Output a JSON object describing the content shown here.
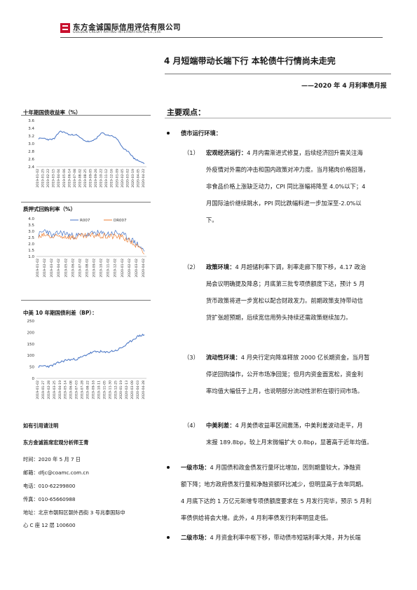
{
  "header": {
    "brand_cn": "东方金诚国际信用评估有限公司",
    "brand_en": "GOLDEN CREDIT RATING INTERNATIONAL Co.,Ltd."
  },
  "report": {
    "title": "4 月短端带动长端下行    本轮债牛行情尚未走完",
    "subtitle": "——2020 年 4 月利率债月报"
  },
  "charts": [
    {
      "title": "十年期国债收益率（%）",
      "chart_data": {
        "type": "line",
        "yticks": [
          "3.6",
          "3.4",
          "3.2",
          "3.0",
          "2.8",
          "2.6",
          "2.4"
        ],
        "ylim": [
          2.4,
          3.6
        ],
        "categories": [
          "2019-01-02",
          "2019-01-25",
          "2019-02-22",
          "2019-03-15",
          "2019-04-04",
          "2019-05-06",
          "2019-06-14",
          "2019-07-08",
          "2019-08-02",
          "2019-08-25",
          "2019-09-05",
          "2019-09-26",
          "2019-10-22",
          "2019-11-12",
          "2019-12-16",
          "2020-01-09",
          "2020-02-05",
          "2020-03-02",
          "2020-03-19",
          "2020-04-05",
          "2020-04-22"
        ],
        "series": [
          {
            "color": "#4472c4",
            "values": [
              3.13,
              3.14,
              3.1,
              3.13,
              3.32,
              3.29,
              3.22,
              3.24,
              3.14,
              3.06,
              3.05,
              3.15,
              3.28,
              3.22,
              3.2,
              3.1,
              2.86,
              2.8,
              2.62,
              2.55,
              2.48
            ]
          }
        ]
      }
    },
    {
      "title": "质押式回购利率（%）",
      "chart_data": {
        "type": "line",
        "yticks": [
          "4.0",
          "3.5",
          "3.0",
          "2.5",
          "2.0",
          "1.5",
          "1.0"
        ],
        "ylim": [
          1.0,
          4.0
        ],
        "categories": [
          "2019-01-02",
          "2019-02-02",
          "2019-03-02",
          "2019-04-02",
          "2019-05-02",
          "2019-06-02",
          "2019-07-02",
          "2019-08-02",
          "2019-09-02",
          "2019-10-02",
          "2019-11-02",
          "2019-12-02",
          "2020-01-02",
          "2020-02-02",
          "2020-03-02",
          "2020-04-02"
        ],
        "series": [
          {
            "name": "R007",
            "color": "#4472c4",
            "values": [
              2.7,
              3.1,
              2.6,
              2.9,
              2.8,
              2.6,
              2.7,
              2.7,
              2.9,
              2.8,
              2.8,
              2.9,
              2.7,
              2.4,
              2.0,
              1.4
            ]
          },
          {
            "name": "DR007",
            "color": "#ed7d31",
            "values": [
              2.5,
              2.7,
              2.5,
              2.6,
              2.6,
              2.5,
              2.6,
              2.6,
              2.7,
              2.6,
              2.6,
              2.6,
              2.5,
              2.2,
              1.8,
              1.2
            ]
          }
        ]
      }
    },
    {
      "title": "中美 10 年期国债利差（BP）：",
      "chart_data": {
        "type": "line",
        "yticks": [
          "250",
          "200",
          "150",
          "100",
          "50",
          "0"
        ],
        "ylim": [
          0,
          250
        ],
        "categories": [
          "2019-01-02",
          "2019-01-27",
          "2019-02-28",
          "2019-03-25",
          "2019-04-19",
          "2019-05-14",
          "2019-06-08",
          "2019-07-03",
          "2019-07-28",
          "2019-08-22",
          "2019-09-16",
          "2019-10-11",
          "2019-11-05",
          "2019-11-30",
          "2019-12-25",
          "2020-01-19",
          "2020-02-13",
          "2020-03-09",
          "2020-04-03",
          "2020-04-28"
        ],
        "series": [
          {
            "color": "#4472c4",
            "values": [
              50,
              55,
              52,
              62,
              72,
              80,
              82,
              85,
              95,
              108,
              115,
              117,
              112,
              118,
              122,
              135,
              150,
              170,
              185,
              190
            ]
          }
        ]
      }
    }
  ],
  "sidebar": {
    "cite_note": "如有引用请注明",
    "analyst": "东方金诚首席宏观分析师王青",
    "time": "时间：2020 年 5 月 7 日",
    "email": "邮箱：dfjc@coamc.com.cn",
    "phone": "电话：010-62299800",
    "fax": "传真：010-65660988",
    "address_1": "地址：北京市朝阳区朝外西街 3 号兆泰国际中",
    "address_2": "心 C 座 12 层   100600"
  },
  "main": {
    "heading": "主要观点：",
    "section1": "债市运行环境：",
    "items": [
      {
        "num": "（1）",
        "label": "宏观经济运行：",
        "lines": [
          "4 月内需渐进式修复，后续经济回升需关注海",
          "外疫情对外需的冲击和国内政策对冲力度。当月猪肉价格回落，",
          "非食品价格上涨缺乏动力，CPI 同比涨幅将降至 4.0%以下；4",
          "月国际油价继续跳水，PPI 同比跌幅料进一步加深至-2.0%以",
          "下。"
        ]
      },
      {
        "num": "（2）",
        "label": "政策环境：",
        "lines": [
          "4 月超储利率下调，利率走廊下限下移，4.17 政治",
          "局会议明确提及降息；月底第三批专项债额度下达，预计 5 月",
          "货币政策将进一步宽松以配合财政发力。前期政策支持带动信",
          "贷扩张超预期，后续宽信用势头持续还需政策继续加力。"
        ]
      },
      {
        "num": "（3）",
        "label": "流动性环境：",
        "lines": [
          "4 月央行定向降准释放 2000 亿长期资金，当月暂",
          "停逆回购操作，公开市场净回笼；但月内资金面宽松，资金利",
          "率均值大幅低于上月，也说明部分流动性淤积在银行间市场。"
        ]
      },
      {
        "num": "（4）",
        "label": "中美利差：",
        "lines": [
          "4 月美债收益率区间震荡，中美利差波动走平，月",
          "末报 189.8bp，较上月末微幅扩大 0.8bp，显著高于近年均值。"
        ]
      }
    ],
    "primary": {
      "label": "一级市场：",
      "lines": [
        "4 月国债和政金债发行量环比增加，因到期量较大，净融资",
        "额下降；地方政府债发行量和净融资额环比减少，但明显高于去年同期。",
        "4 月底下达的 1 万亿元新增专项债额度要求在 5 月发行完毕，预示 5 月利",
        "率债供给将会大增。此外，4 月利率债发行利率明显走低。"
      ]
    },
    "secondary": {
      "label": "二级市场：",
      "lines": [
        "4 月资金利率中枢下移，带动债市短端利率大降，并为长端"
      ]
    }
  }
}
